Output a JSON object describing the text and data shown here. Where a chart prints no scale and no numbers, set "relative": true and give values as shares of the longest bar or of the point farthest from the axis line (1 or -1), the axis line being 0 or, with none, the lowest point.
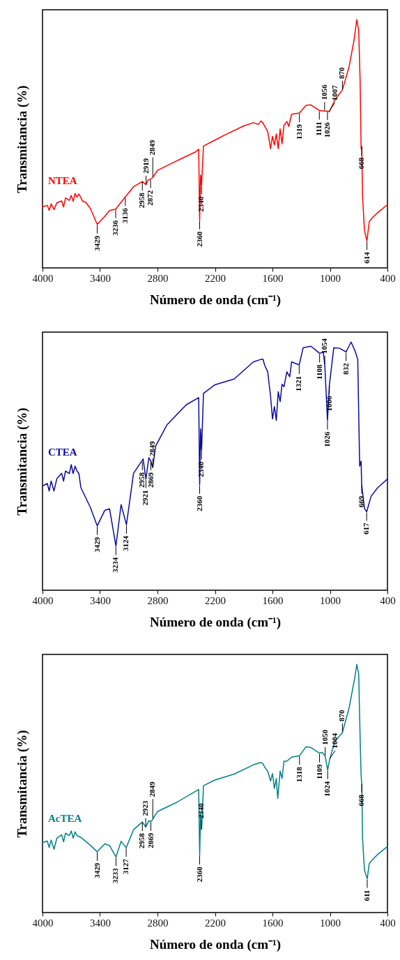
{
  "chart_data": [
    {
      "type": "line",
      "relative": true,
      "xlabel": "Número de onda (cm⁻¹)",
      "ylabel": "Transmitancia (%)",
      "xlim": [
        4000,
        400
      ],
      "xticks": [
        4000,
        3400,
        2800,
        2200,
        1600,
        1000,
        400
      ],
      "x": [
        4000,
        3950,
        3930,
        3910,
        3880,
        3850,
        3800,
        3780,
        3760,
        3720,
        3700,
        3680,
        3660,
        3640,
        3620,
        3580,
        3550,
        3500,
        3429,
        3350,
        3300,
        3236,
        3136,
        3050,
        2958,
        2919,
        2900,
        2872,
        2849,
        2800,
        2600,
        2400,
        2370,
        2360,
        2350,
        2340,
        2320,
        2200,
        2100,
        1900,
        1800,
        1750,
        1720,
        1700,
        1680,
        1650,
        1620,
        1600,
        1580,
        1560,
        1540,
        1520,
        1500,
        1480,
        1450,
        1430,
        1400,
        1319,
        1250,
        1200,
        1111,
        1056,
        1026,
        1007,
        950,
        870,
        800,
        750,
        720,
        700,
        685,
        675,
        668,
        660,
        640,
        614,
        590,
        550,
        500,
        400
      ],
      "series": [
        {
          "name": "NTEA",
          "color": "#ff0000",
          "values": [
            0.246,
            0.252,
            0.232,
            0.258,
            0.235,
            0.262,
            0.27,
            0.245,
            0.282,
            0.272,
            0.292,
            0.268,
            0.3,
            0.285,
            0.298,
            0.268,
            0.265,
            0.239,
            0.175,
            0.208,
            0.231,
            0.237,
            0.286,
            0.327,
            0.348,
            0.335,
            0.353,
            0.358,
            0.364,
            0.393,
            0.431,
            0.468,
            0.478,
            0.192,
            0.374,
            0.333,
            0.491,
            0.515,
            0.535,
            0.572,
            0.585,
            0.578,
            0.592,
            0.584,
            0.57,
            0.55,
            0.48,
            0.53,
            0.495,
            0.54,
            0.48,
            0.56,
            0.5,
            0.575,
            0.59,
            0.57,
            0.619,
            0.624,
            0.655,
            0.657,
            0.634,
            0.632,
            0.632,
            0.629,
            0.676,
            0.717,
            0.811,
            0.915,
            1.0,
            0.956,
            0.75,
            0.48,
            0.49,
            0.29,
            0.15,
            0.109,
            0.187,
            0.205,
            0.223,
            0.255
          ]
        }
      ],
      "annotations": [
        {
          "text": "3429",
          "x": 3429,
          "y": 0.175
        },
        {
          "text": "3236",
          "x": 3236,
          "y": 0.237
        },
        {
          "text": "3136",
          "x": 3136,
          "y": 0.286
        },
        {
          "text": "2958",
          "x": 2958,
          "y": 0.348
        },
        {
          "text": "2919",
          "x": 2919,
          "y": 0.335
        },
        {
          "text": "2872",
          "x": 2872,
          "y": 0.358
        },
        {
          "text": "2849",
          "x": 2849,
          "y": 0.364
        },
        {
          "text": "2360",
          "x": 2360,
          "y": 0.192
        },
        {
          "text": "2340",
          "x": 2340,
          "y": 0.333
        },
        {
          "text": "1319",
          "x": 1319,
          "y": 0.624
        },
        {
          "text": "1111",
          "x": 1111,
          "y": 0.634
        },
        {
          "text": "1056",
          "x": 1056,
          "y": 0.632
        },
        {
          "text": "1026",
          "x": 1026,
          "y": 0.632
        },
        {
          "text": "1007",
          "x": 1007,
          "y": 0.629
        },
        {
          "text": "870",
          "x": 870,
          "y": 0.717
        },
        {
          "text": "668",
          "x": 668,
          "y": 0.49
        },
        {
          "text": "614",
          "x": 614,
          "y": 0.109
        }
      ]
    },
    {
      "type": "line",
      "relative": true,
      "xlabel": "Número de onda (cm⁻¹)",
      "ylabel": "Transmitancia (%)",
      "xlim": [
        4000,
        400
      ],
      "xticks": [
        4000,
        3400,
        2800,
        2200,
        1600,
        1000,
        400
      ],
      "x": [
        4000,
        3950,
        3930,
        3910,
        3880,
        3850,
        3800,
        3780,
        3760,
        3720,
        3700,
        3680,
        3660,
        3640,
        3620,
        3600,
        3500,
        3429,
        3350,
        3300,
        3234,
        3180,
        3124,
        3050,
        2950,
        2921,
        2890,
        2869,
        2849,
        2820,
        2700,
        2500,
        2370,
        2360,
        2350,
        2340,
        2320,
        2200,
        2000,
        1800,
        1720,
        1700,
        1680,
        1650,
        1620,
        1600,
        1580,
        1560,
        1540,
        1520,
        1500,
        1480,
        1450,
        1420,
        1400,
        1321,
        1280,
        1200,
        1150,
        1108,
        1070,
        1054,
        1026,
        1006,
        960,
        900,
        832,
        780,
        740,
        710,
        690,
        675,
        669,
        640,
        617,
        570,
        500,
        400
      ],
      "series": [
        {
          "name": "CTEA",
          "color": "#0a0aa0",
          "values": [
            0.42,
            0.43,
            0.4,
            0.44,
            0.4,
            0.45,
            0.471,
            0.44,
            0.48,
            0.47,
            0.506,
            0.47,
            0.5,
            0.48,
            0.47,
            0.414,
            0.333,
            0.259,
            0.322,
            0.328,
            0.178,
            0.345,
            0.264,
            0.471,
            0.529,
            0.448,
            0.534,
            0.52,
            0.494,
            0.58,
            0.667,
            0.747,
            0.776,
            0.425,
            0.65,
            0.563,
            0.793,
            0.828,
            0.851,
            0.92,
            0.93,
            0.931,
            0.905,
            0.88,
            0.782,
            0.69,
            0.74,
            0.684,
            0.8,
            0.76,
            0.83,
            0.82,
            0.88,
            0.86,
            0.92,
            0.908,
            0.977,
            0.983,
            0.968,
            0.954,
            0.96,
            0.908,
            0.684,
            0.828,
            0.977,
            0.975,
            0.96,
            1.0,
            0.966,
            0.93,
            0.5,
            0.52,
            0.425,
            0.33,
            0.316,
            0.379,
            0.414,
            0.448
          ]
        }
      ],
      "annotations": [
        {
          "text": "3429",
          "x": 3429,
          "y": 0.259
        },
        {
          "text": "3234",
          "x": 3234,
          "y": 0.178
        },
        {
          "text": "3124",
          "x": 3124,
          "y": 0.264
        },
        {
          "text": "2958",
          "x": 2958,
          "y": 0.52
        },
        {
          "text": "2921",
          "x": 2921,
          "y": 0.448
        },
        {
          "text": "2869",
          "x": 2869,
          "y": 0.52
        },
        {
          "text": "2849",
          "x": 2849,
          "y": 0.494
        },
        {
          "text": "2360",
          "x": 2360,
          "y": 0.425
        },
        {
          "text": "2340",
          "x": 2340,
          "y": 0.563
        },
        {
          "text": "1321",
          "x": 1321,
          "y": 0.908
        },
        {
          "text": "1108",
          "x": 1108,
          "y": 0.954
        },
        {
          "text": "1054",
          "x": 1054,
          "y": 0.908
        },
        {
          "text": "1026",
          "x": 1026,
          "y": 0.684
        },
        {
          "text": "1006",
          "x": 1006,
          "y": 0.828
        },
        {
          "text": "832",
          "x": 832,
          "y": 0.96
        },
        {
          "text": "669",
          "x": 669,
          "y": 0.425
        },
        {
          "text": "617",
          "x": 617,
          "y": 0.316
        }
      ]
    },
    {
      "type": "line",
      "relative": true,
      "xlabel": "Número de onda (cm⁻¹)",
      "ylabel": "Transmitancia (%)",
      "xlim": [
        4000,
        400
      ],
      "xticks": [
        4000,
        3400,
        2800,
        2200,
        1600,
        1000,
        400
      ],
      "x": [
        4000,
        3950,
        3930,
        3910,
        3880,
        3850,
        3800,
        3780,
        3760,
        3720,
        3700,
        3680,
        3660,
        3640,
        3600,
        3500,
        3429,
        3350,
        3300,
        3233,
        3180,
        3127,
        3050,
        2958,
        2923,
        2890,
        2869,
        2849,
        2800,
        2600,
        2370,
        2360,
        2350,
        2340,
        2320,
        2200,
        2000,
        1800,
        1720,
        1700,
        1680,
        1650,
        1620,
        1600,
        1580,
        1560,
        1545,
        1520,
        1500,
        1480,
        1450,
        1400,
        1318,
        1250,
        1200,
        1109,
        1080,
        1050,
        1024,
        1004,
        950,
        870,
        800,
        740,
        720,
        700,
        685,
        675,
        668,
        660,
        640,
        611,
        590,
        550,
        500,
        400
      ],
      "series": [
        {
          "name": "AcTEA",
          "color": "#008080",
          "values": [
            0.282,
            0.288,
            0.262,
            0.292,
            0.255,
            0.3,
            0.313,
            0.285,
            0.32,
            0.31,
            0.329,
            0.3,
            0.325,
            0.31,
            0.303,
            0.271,
            0.245,
            0.277,
            0.27,
            0.224,
            0.287,
            0.261,
            0.334,
            0.365,
            0.344,
            0.37,
            0.366,
            0.376,
            0.407,
            0.444,
            0.496,
            0.23,
            0.4,
            0.334,
            0.511,
            0.534,
            0.558,
            0.595,
            0.605,
            0.6,
            0.585,
            0.57,
            0.53,
            0.56,
            0.5,
            0.54,
            0.46,
            0.57,
            0.54,
            0.61,
            0.61,
            0.626,
            0.632,
            0.668,
            0.665,
            0.642,
            0.645,
            0.63,
            0.574,
            0.616,
            0.689,
            0.725,
            0.825,
            0.948,
            1.0,
            0.96,
            0.7,
            0.55,
            0.52,
            0.3,
            0.17,
            0.136,
            0.198,
            0.215,
            0.235,
            0.266
          ]
        }
      ],
      "annotations": [
        {
          "text": "3429",
          "x": 3429,
          "y": 0.245
        },
        {
          "text": "3233",
          "x": 3233,
          "y": 0.224
        },
        {
          "text": "3127",
          "x": 3127,
          "y": 0.261
        },
        {
          "text": "2958",
          "x": 2958,
          "y": 0.365
        },
        {
          "text": "2923",
          "x": 2923,
          "y": 0.344
        },
        {
          "text": "2869",
          "x": 2869,
          "y": 0.366
        },
        {
          "text": "2849",
          "x": 2849,
          "y": 0.376
        },
        {
          "text": "2360",
          "x": 2360,
          "y": 0.23
        },
        {
          "text": "2340",
          "x": 2340,
          "y": 0.334
        },
        {
          "text": "1318",
          "x": 1318,
          "y": 0.632
        },
        {
          "text": "1109",
          "x": 1109,
          "y": 0.642
        },
        {
          "text": "1050",
          "x": 1050,
          "y": 0.63
        },
        {
          "text": "1024",
          "x": 1024,
          "y": 0.574
        },
        {
          "text": "1004",
          "x": 1004,
          "y": 0.616
        },
        {
          "text": "870",
          "x": 870,
          "y": 0.725
        },
        {
          "text": "668",
          "x": 668,
          "y": 0.52
        },
        {
          "text": "611",
          "x": 611,
          "y": 0.136
        }
      ]
    }
  ]
}
